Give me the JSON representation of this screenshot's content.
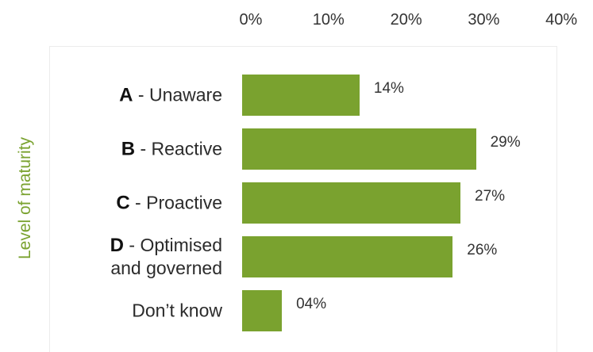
{
  "chart_data": {
    "type": "bar",
    "orientation": "horizontal",
    "xlim": [
      0,
      40
    ],
    "ticks": [
      "0%",
      "10%",
      "20%",
      "30%",
      "40%"
    ],
    "ylabel": "Level of maturity",
    "categories": [
      {
        "letter": "A",
        "sep": " - ",
        "text": "Unaware"
      },
      {
        "letter": "B",
        "sep": " - ",
        "text": "Reactive"
      },
      {
        "letter": "C",
        "sep": " - ",
        "text": "Proactive"
      },
      {
        "letter": "D",
        "sep": " - ",
        "text": "Optimised and governed"
      },
      {
        "letter": "",
        "sep": "",
        "text": "Don’t know"
      }
    ],
    "values": [
      14,
      29,
      27,
      26,
      4
    ],
    "value_labels": [
      "14%",
      "29%",
      "27%",
      "26%",
      "04%"
    ],
    "bar_color": "#7aa22f",
    "grid": false
  }
}
